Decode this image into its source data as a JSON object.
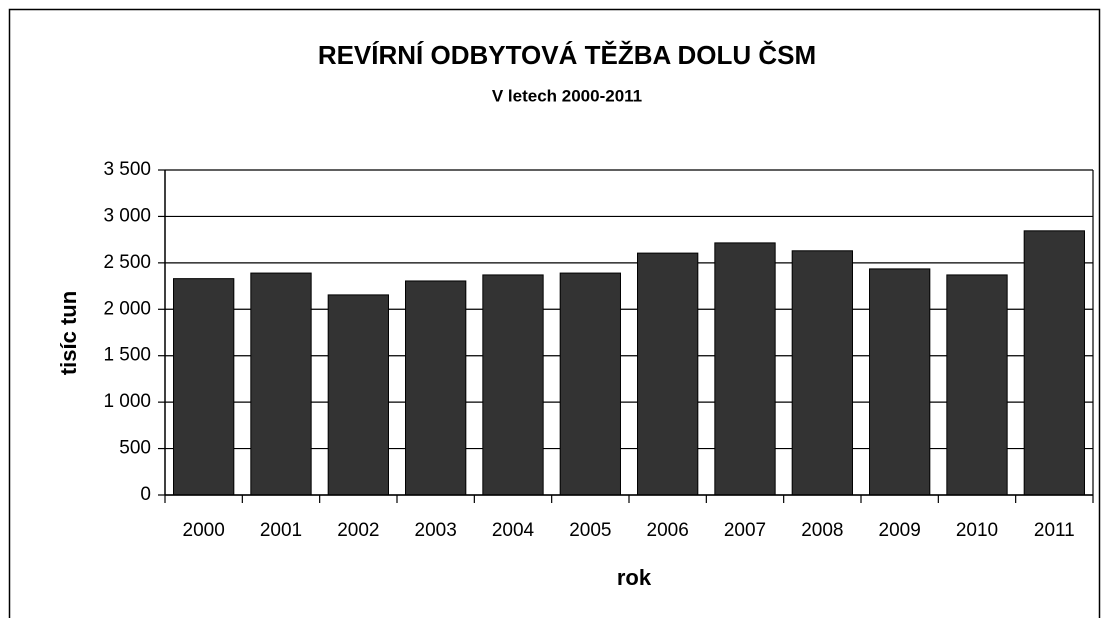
{
  "chart_data": {
    "type": "bar",
    "title": "REVÍRNÍ ODBYTOVÁ TĚŽBA DOLU ČSM",
    "subtitle": "V letech 2000-2011",
    "x_label": "rok",
    "y_label": "tisíc tun",
    "categories": [
      "2000",
      "2001",
      "2002",
      "2003",
      "2004",
      "2005",
      "2006",
      "2007",
      "2008",
      "2009",
      "2010",
      "2011"
    ],
    "values": [
      2330,
      2390,
      2155,
      2305,
      2370,
      2390,
      2605,
      2715,
      2630,
      2435,
      2370,
      2845
    ],
    "color": "#333333",
    "ylim": [
      0,
      3500
    ],
    "yticks": [
      0,
      {
        "value": 500,
        "label": "500"
      },
      {
        "value": 1000,
        "label": "1 000"
      },
      {
        "value": 1500,
        "label": "1 500"
      },
      {
        "value": 2000,
        "label": "2 000"
      },
      {
        "value": 2500,
        "label": "2 500"
      },
      {
        "value": 3000,
        "label": "3 000"
      },
      {
        "value": 3500,
        "label": "3 500"
      }
    ],
    "grid": true
  }
}
